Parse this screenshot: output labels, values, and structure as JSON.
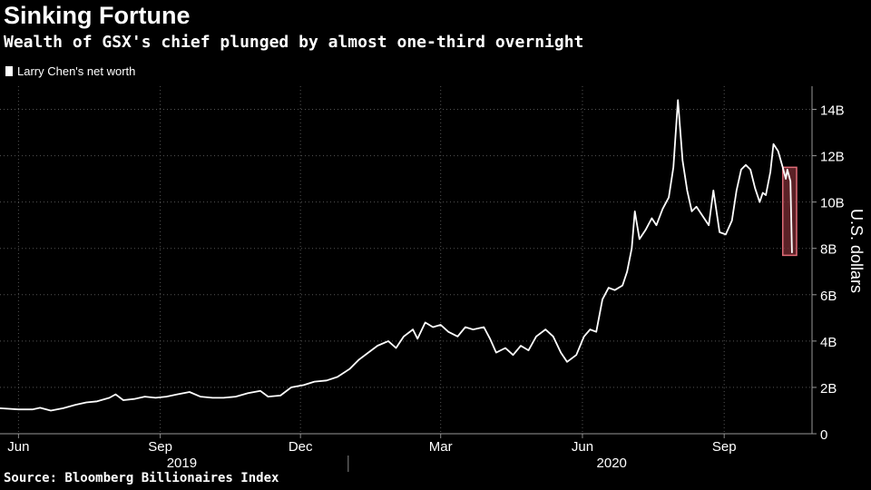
{
  "header": {
    "title": "Sinking Fortune",
    "subtitle": "Wealth of GSX's chief plunged by almost one-third overnight"
  },
  "footer": {
    "source": "Source: Bloomberg Billionaires Index"
  },
  "colors": {
    "background": "#000000",
    "line": "#ffffff",
    "highlight_fill": "#7a2c33",
    "highlight_stroke": "#e06c78"
  },
  "chart_data": {
    "type": "line",
    "title": "Sinking Fortune",
    "subtitle": "Wealth of GSX's chief plunged by almost one-third overnight",
    "ylabel": "U.S. dollars",
    "ylim": [
      0,
      15
    ],
    "yticks": [
      0,
      2,
      4,
      6,
      8,
      10,
      12,
      14
    ],
    "ytick_labels": [
      "0",
      "2B",
      "4B",
      "6B",
      "8B",
      "10B",
      "12B",
      "14B"
    ],
    "x_month_ticks": [
      {
        "date": "2019-06-01",
        "label": "Jun"
      },
      {
        "date": "2019-09-01",
        "label": "Sep"
      },
      {
        "date": "2019-12-01",
        "label": "Dec"
      },
      {
        "date": "2020-03-01",
        "label": "Mar"
      },
      {
        "date": "2020-06-01",
        "label": "Jun"
      },
      {
        "date": "2020-09-01",
        "label": "Sep"
      }
    ],
    "x_year_labels": [
      {
        "label": "2019",
        "center": "2019-09-15"
      },
      {
        "label": "2020",
        "center": "2020-06-20"
      }
    ],
    "year_divider": "2020-01-01",
    "xlim": [
      "2019-05-20",
      "2020-10-28"
    ],
    "grid": true,
    "legend": {
      "position": "top-left",
      "entries": [
        "Larry Chen's net worth"
      ]
    },
    "highlight": {
      "x_start": "2020-10-09",
      "x_end": "2020-10-18",
      "y_low": 7.7,
      "y_high": 11.5
    },
    "series": [
      {
        "name": "Larry Chen's net worth",
        "points": [
          [
            "2019-05-20",
            1.1
          ],
          [
            "2019-06-01",
            1.05
          ],
          [
            "2019-06-10",
            1.05
          ],
          [
            "2019-06-15",
            1.12
          ],
          [
            "2019-06-22",
            1.0
          ],
          [
            "2019-06-30",
            1.1
          ],
          [
            "2019-07-08",
            1.25
          ],
          [
            "2019-07-15",
            1.35
          ],
          [
            "2019-07-22",
            1.4
          ],
          [
            "2019-07-30",
            1.55
          ],
          [
            "2019-08-03",
            1.7
          ],
          [
            "2019-08-08",
            1.45
          ],
          [
            "2019-08-15",
            1.5
          ],
          [
            "2019-08-22",
            1.6
          ],
          [
            "2019-08-29",
            1.55
          ],
          [
            "2019-09-05",
            1.6
          ],
          [
            "2019-09-12",
            1.7
          ],
          [
            "2019-09-20",
            1.8
          ],
          [
            "2019-09-27",
            1.6
          ],
          [
            "2019-10-05",
            1.55
          ],
          [
            "2019-10-12",
            1.55
          ],
          [
            "2019-10-20",
            1.6
          ],
          [
            "2019-10-28",
            1.75
          ],
          [
            "2019-11-05",
            1.85
          ],
          [
            "2019-11-10",
            1.6
          ],
          [
            "2019-11-18",
            1.65
          ],
          [
            "2019-11-25",
            2.0
          ],
          [
            "2019-12-03",
            2.1
          ],
          [
            "2019-12-10",
            2.25
          ],
          [
            "2019-12-18",
            2.3
          ],
          [
            "2019-12-25",
            2.45
          ],
          [
            "2020-01-02",
            2.8
          ],
          [
            "2020-01-08",
            3.2
          ],
          [
            "2020-01-14",
            3.5
          ],
          [
            "2020-01-20",
            3.8
          ],
          [
            "2020-01-27",
            4.0
          ],
          [
            "2020-02-01",
            3.7
          ],
          [
            "2020-02-06",
            4.2
          ],
          [
            "2020-02-12",
            4.5
          ],
          [
            "2020-02-15",
            4.1
          ],
          [
            "2020-02-20",
            4.8
          ],
          [
            "2020-02-25",
            4.6
          ],
          [
            "2020-03-01",
            4.7
          ],
          [
            "2020-03-06",
            4.4
          ],
          [
            "2020-03-12",
            4.2
          ],
          [
            "2020-03-17",
            4.6
          ],
          [
            "2020-03-22",
            4.5
          ],
          [
            "2020-03-29",
            4.6
          ],
          [
            "2020-04-02",
            4.1
          ],
          [
            "2020-04-06",
            3.5
          ],
          [
            "2020-04-12",
            3.7
          ],
          [
            "2020-04-17",
            3.4
          ],
          [
            "2020-04-22",
            3.8
          ],
          [
            "2020-04-27",
            3.6
          ],
          [
            "2020-05-02",
            4.2
          ],
          [
            "2020-05-08",
            4.5
          ],
          [
            "2020-05-13",
            4.2
          ],
          [
            "2020-05-18",
            3.5
          ],
          [
            "2020-05-22",
            3.1
          ],
          [
            "2020-05-28",
            3.4
          ],
          [
            "2020-06-02",
            4.2
          ],
          [
            "2020-06-06",
            4.5
          ],
          [
            "2020-06-10",
            4.4
          ],
          [
            "2020-06-14",
            5.8
          ],
          [
            "2020-06-18",
            6.3
          ],
          [
            "2020-06-22",
            6.2
          ],
          [
            "2020-06-27",
            6.4
          ],
          [
            "2020-06-30",
            7.0
          ],
          [
            "2020-07-03",
            8.0
          ],
          [
            "2020-07-05",
            9.6
          ],
          [
            "2020-07-08",
            8.4
          ],
          [
            "2020-07-12",
            8.8
          ],
          [
            "2020-07-16",
            9.3
          ],
          [
            "2020-07-19",
            9.0
          ],
          [
            "2020-07-23",
            9.7
          ],
          [
            "2020-07-27",
            10.2
          ],
          [
            "2020-07-30",
            11.5
          ],
          [
            "2020-08-02",
            14.4
          ],
          [
            "2020-08-05",
            11.8
          ],
          [
            "2020-08-08",
            10.5
          ],
          [
            "2020-08-11",
            9.6
          ],
          [
            "2020-08-14",
            9.8
          ],
          [
            "2020-08-18",
            9.4
          ],
          [
            "2020-08-22",
            9.0
          ],
          [
            "2020-08-25",
            10.5
          ],
          [
            "2020-08-29",
            8.7
          ],
          [
            "2020-09-02",
            8.6
          ],
          [
            "2020-09-06",
            9.2
          ],
          [
            "2020-09-09",
            10.5
          ],
          [
            "2020-09-12",
            11.4
          ],
          [
            "2020-09-15",
            11.6
          ],
          [
            "2020-09-18",
            11.4
          ],
          [
            "2020-09-21",
            10.6
          ],
          [
            "2020-09-24",
            10.0
          ],
          [
            "2020-09-26",
            10.4
          ],
          [
            "2020-09-28",
            10.3
          ],
          [
            "2020-10-01",
            11.3
          ],
          [
            "2020-10-03",
            12.5
          ],
          [
            "2020-10-06",
            12.2
          ],
          [
            "2020-10-09",
            11.5
          ],
          [
            "2020-10-11",
            11.0
          ],
          [
            "2020-10-12",
            11.4
          ],
          [
            "2020-10-14",
            10.9
          ],
          [
            "2020-10-15",
            7.8
          ]
        ]
      }
    ]
  }
}
